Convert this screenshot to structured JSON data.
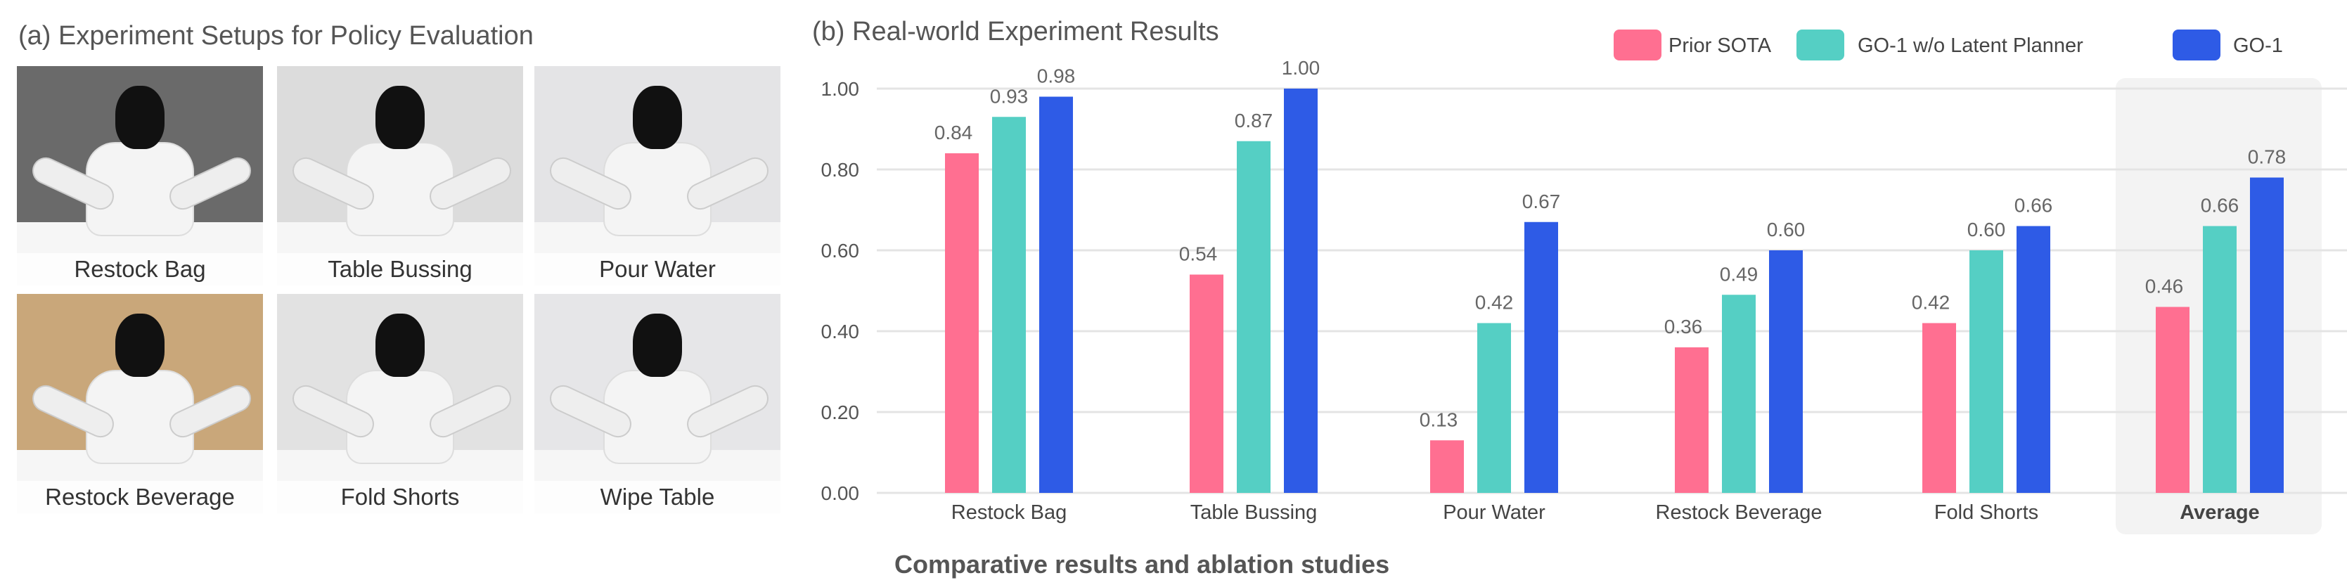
{
  "panel_a": {
    "title": "(a) Experiment Setups for Policy Evaluation",
    "photos": [
      {
        "label": "Restock Bag",
        "bg": "#6a6a6a"
      },
      {
        "label": "Table Bussing",
        "bg": "#dcdcdc"
      },
      {
        "label": "Pour Water",
        "bg": "#e4e4e6"
      },
      {
        "label": "Restock Beverage",
        "bg": "#c9a77a"
      },
      {
        "label": "Fold Shorts",
        "bg": "#e2e2e2"
      },
      {
        "label": "Wipe Table",
        "bg": "#e6e6e8"
      }
    ]
  },
  "caption": "Comparative results and ablation studies",
  "chart_data": {
    "type": "bar",
    "title": "(b) Real-world Experiment Results",
    "xlabel": "",
    "ylabel": "",
    "ylim": [
      0,
      1.0
    ],
    "yticks": [
      "0.00",
      "0.20",
      "0.40",
      "0.60",
      "0.80",
      "1.00"
    ],
    "grid": true,
    "legend_position": "top-right",
    "highlighted_category": "Average",
    "categories": [
      "Restock Bag",
      "Table Bussing",
      "Pour Water",
      "Restock Beverage",
      "Fold Shorts",
      "Average"
    ],
    "series": [
      {
        "name": "Prior SOTA",
        "color": "#ff6f91",
        "values": [
          0.84,
          0.54,
          0.13,
          0.36,
          0.42,
          0.46
        ]
      },
      {
        "name": "GO-1 w/o Latent Planner",
        "color": "#55cfc4",
        "values": [
          0.93,
          0.87,
          0.42,
          0.49,
          0.6,
          0.66
        ]
      },
      {
        "name": "GO-1",
        "color": "#2e5be6",
        "values": [
          0.98,
          1.0,
          0.67,
          0.6,
          0.66,
          0.78
        ]
      }
    ]
  }
}
